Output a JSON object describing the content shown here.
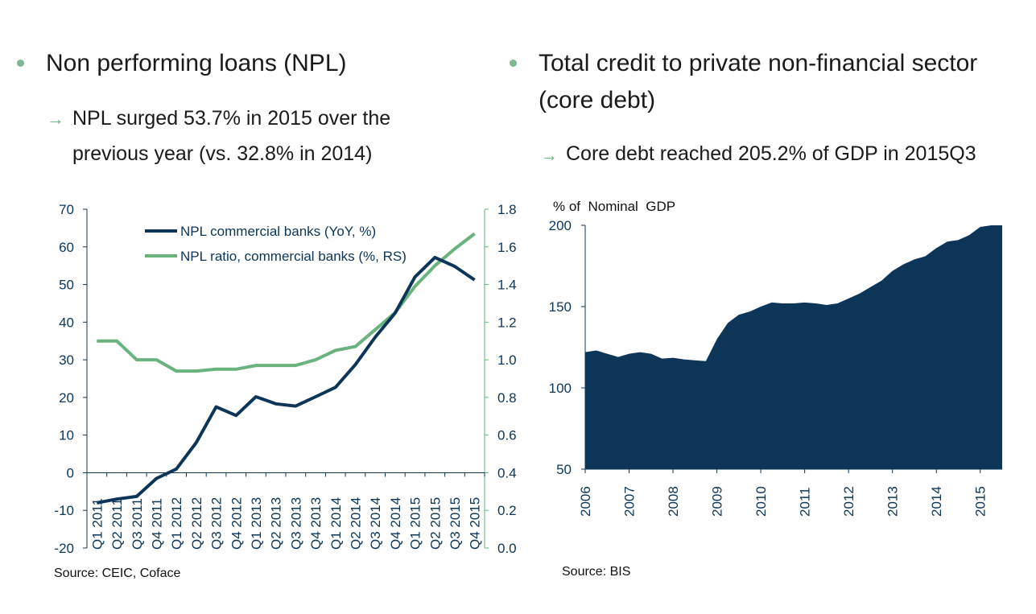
{
  "colors": {
    "dark_navy": "#0d3558",
    "green": "#6ab27e",
    "bullet": "#7cb892"
  },
  "left": {
    "bullet_icon": "green-dot-icon",
    "heading": "Non performing loans (NPL)",
    "sub_icon": "arrow-right-icon",
    "sub_line1": "NPL surged 53.7% in 2015 over the",
    "sub_line2": "previous year (vs. 32.8% in 2014)",
    "source": "Source: CEIC, Coface"
  },
  "right": {
    "bullet_icon": "green-dot-icon",
    "heading_line1": "Total credit to private non-financial sector",
    "heading_line2": "(core debt)",
    "sub_icon": "arrow-right-icon",
    "sub_line1": "Core debt reached 205.2% of GDP in 2015Q3",
    "source": "Source: BIS"
  },
  "chart_data": [
    {
      "type": "line",
      "categories": [
        "Q1 2011",
        "Q2 2011",
        "Q3 2011",
        "Q4 2011",
        "Q1 2012",
        "Q2 2012",
        "Q3 2012",
        "Q4 2012",
        "Q1 2013",
        "Q2 2013",
        "Q3 2013",
        "Q4 2013",
        "Q1 2014",
        "Q2 2014",
        "Q3 2014",
        "Q4 2014",
        "Q1 2015",
        "Q2 2015",
        "Q3 2015",
        "Q4 2015"
      ],
      "series": [
        {
          "name": "NPL commercial banks (YoY, %)",
          "axis": "left",
          "color": "#0d3558",
          "values": [
            -8,
            -7,
            -6.3,
            -1.5,
            1,
            8,
            17.5,
            15.2,
            20.2,
            18.3,
            17.7,
            20.2,
            22.7,
            28.7,
            36,
            42.4,
            52,
            57.2,
            54.8,
            51.2
          ]
        },
        {
          "name": "NPL ratio, commercial banks (%, RS)",
          "axis": "right",
          "color": "#6ab27e",
          "values": [
            1.1,
            1.1,
            1.0,
            1.0,
            0.94,
            0.94,
            0.95,
            0.95,
            0.97,
            0.97,
            0.97,
            1.0,
            1.05,
            1.07,
            1.16,
            1.25,
            1.39,
            1.5,
            1.59,
            1.67
          ]
        }
      ],
      "ylim": [
        -20,
        70
      ],
      "yticks": [
        "-20",
        "-10",
        "0",
        "10",
        "20",
        "30",
        "40",
        "50",
        "60",
        "70"
      ],
      "y2lim": [
        0,
        1.8
      ],
      "y2ticks": [
        "0.0",
        "0.2",
        "0.4",
        "0.6",
        "0.8",
        "1.0",
        "1.2",
        "1.4",
        "1.6",
        "1.8"
      ],
      "legend": "top-left",
      "grid": false
    },
    {
      "type": "area",
      "ylabel": "% of  Nominal  GDP",
      "ylim": [
        50,
        200
      ],
      "yticks": [
        "50",
        "100",
        "150",
        "200"
      ],
      "xticks": [
        "2006",
        "2007",
        "2008",
        "2009",
        "2010",
        "2011",
        "2012",
        "2013",
        "2014",
        "2015"
      ],
      "color": "#0d3558",
      "x": [
        2006.0,
        2006.25,
        2006.5,
        2006.75,
        2007.0,
        2007.25,
        2007.5,
        2007.75,
        2008.0,
        2008.25,
        2008.5,
        2008.75,
        2009.0,
        2009.25,
        2009.5,
        2009.75,
        2010.0,
        2010.25,
        2010.5,
        2010.75,
        2011.0,
        2011.25,
        2011.5,
        2011.75,
        2012.0,
        2012.25,
        2012.5,
        2012.75,
        2013.0,
        2013.25,
        2013.5,
        2013.75,
        2014.0,
        2014.25,
        2014.5,
        2014.75,
        2015.0,
        2015.25,
        2015.5
      ],
      "values": [
        122,
        123,
        121,
        119,
        121,
        122,
        121,
        118,
        118.5,
        117.5,
        117,
        116.5,
        130,
        140,
        145,
        147,
        150,
        152.5,
        152,
        152,
        152.5,
        152,
        151,
        152,
        155,
        158,
        162,
        166,
        172,
        176,
        179,
        181,
        186,
        190,
        191,
        194,
        199,
        203,
        205
      ],
      "grid": false
    }
  ]
}
